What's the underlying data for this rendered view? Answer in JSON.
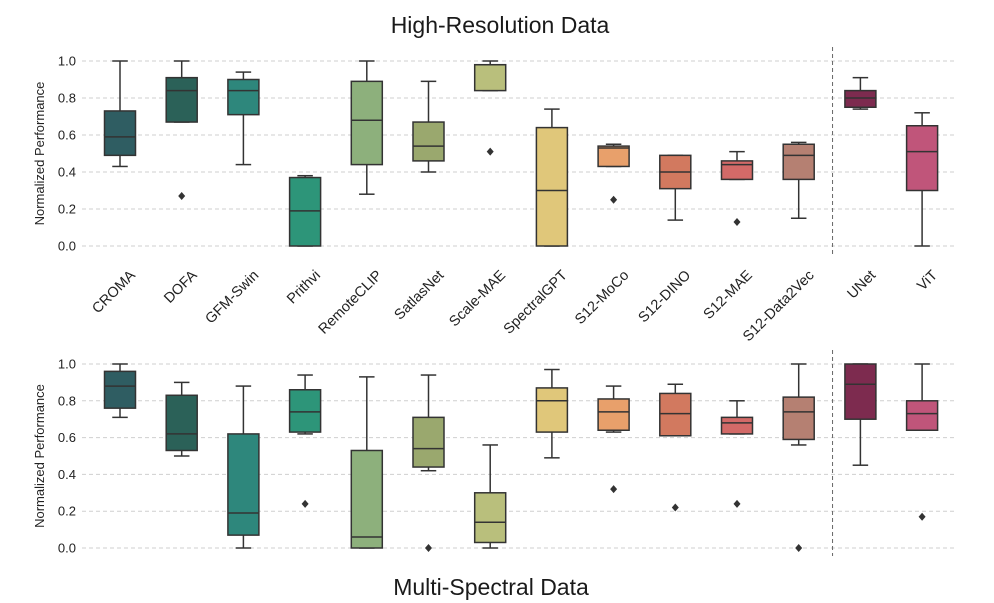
{
  "chart_data": [
    {
      "type": "box",
      "title": "High-Resolution Data",
      "ylabel": "Normalized Performance",
      "ylim": [
        0,
        1
      ],
      "yticks": [
        "0.0",
        "0.2",
        "0.4",
        "0.6",
        "0.8",
        "1.0"
      ],
      "grid": true,
      "categories": [
        "CROMA",
        "DOFA",
        "GFM-Swin",
        "Prithvi",
        "RemoteCLIP",
        "SatlasNet",
        "Scale-MAE",
        "SpectralGPT",
        "S12-MoCo",
        "S12-DINO",
        "S12-MAE",
        "S12-Data2Vec",
        "UNet",
        "ViT"
      ],
      "separator_after": "S12-Data2Vec",
      "boxes": [
        {
          "min": 0.43,
          "q1": 0.49,
          "median": 0.59,
          "q3": 0.73,
          "max": 1.0,
          "outliers": [],
          "color": "#2f5d62"
        },
        {
          "min": 0.67,
          "q1": 0.67,
          "median": 0.84,
          "q3": 0.91,
          "max": 1.0,
          "outliers": [
            0.27
          ],
          "color": "#2b6158"
        },
        {
          "min": 0.44,
          "q1": 0.71,
          "median": 0.84,
          "q3": 0.9,
          "max": 0.94,
          "outliers": [],
          "color": "#2e877c"
        },
        {
          "min": 0.0,
          "q1": 0.0,
          "median": 0.19,
          "q3": 0.37,
          "max": 0.38,
          "outliers": [],
          "color": "#2d9579"
        },
        {
          "min": 0.28,
          "q1": 0.44,
          "median": 0.68,
          "q3": 0.89,
          "max": 1.0,
          "outliers": [],
          "color": "#8db07c"
        },
        {
          "min": 0.4,
          "q1": 0.46,
          "median": 0.54,
          "q3": 0.67,
          "max": 0.89,
          "outliers": [],
          "color": "#9aa86e"
        },
        {
          "min": 0.84,
          "q1": 0.84,
          "median": 0.98,
          "q3": 0.98,
          "max": 1.0,
          "outliers": [
            0.51
          ],
          "color": "#b9bf7c"
        },
        {
          "min": 0.0,
          "q1": 0.0,
          "median": 0.3,
          "q3": 0.64,
          "max": 0.74,
          "outliers": [],
          "color": "#e0c77a"
        },
        {
          "min": 0.43,
          "q1": 0.43,
          "median": 0.53,
          "q3": 0.54,
          "max": 0.55,
          "outliers": [
            0.25
          ],
          "color": "#e8a06b"
        },
        {
          "min": 0.14,
          "q1": 0.31,
          "median": 0.4,
          "q3": 0.49,
          "max": 0.49,
          "outliers": [],
          "color": "#d2795f"
        },
        {
          "min": 0.36,
          "q1": 0.36,
          "median": 0.44,
          "q3": 0.46,
          "max": 0.51,
          "outliers": [
            0.13
          ],
          "color": "#d36a68"
        },
        {
          "min": 0.15,
          "q1": 0.36,
          "median": 0.49,
          "q3": 0.55,
          "max": 0.56,
          "outliers": [],
          "color": "#b58072"
        },
        {
          "min": 0.74,
          "q1": 0.75,
          "median": 0.8,
          "q3": 0.84,
          "max": 0.91,
          "outliers": [],
          "color": "#7d2b4f"
        },
        {
          "min": 0.0,
          "q1": 0.3,
          "median": 0.51,
          "q3": 0.65,
          "max": 0.72,
          "outliers": [],
          "color": "#c0557a"
        }
      ]
    },
    {
      "type": "box",
      "title": "Multi-Spectral Data",
      "ylabel": "Normalized Performance",
      "ylim": [
        0,
        1
      ],
      "yticks": [
        "0.0",
        "0.2",
        "0.4",
        "0.6",
        "0.8",
        "1.0"
      ],
      "grid": true,
      "separator_after": "S12-Data2Vec",
      "boxes": [
        {
          "min": 0.71,
          "q1": 0.76,
          "median": 0.88,
          "q3": 0.96,
          "max": 1.0,
          "outliers": [],
          "color": "#2f5d62"
        },
        {
          "min": 0.5,
          "q1": 0.53,
          "median": 0.62,
          "q3": 0.83,
          "max": 0.9,
          "outliers": [],
          "color": "#2b6158"
        },
        {
          "min": 0.0,
          "q1": 0.07,
          "median": 0.19,
          "q3": 0.62,
          "max": 0.88,
          "outliers": [],
          "color": "#2e877c"
        },
        {
          "min": 0.62,
          "q1": 0.63,
          "median": 0.74,
          "q3": 0.86,
          "max": 0.94,
          "outliers": [
            0.24
          ],
          "color": "#2d9579"
        },
        {
          "min": 0.0,
          "q1": 0.0,
          "median": 0.06,
          "q3": 0.53,
          "max": 0.93,
          "outliers": [],
          "color": "#8db07c"
        },
        {
          "min": 0.42,
          "q1": 0.44,
          "median": 0.54,
          "q3": 0.71,
          "max": 0.94,
          "outliers": [
            0.0
          ],
          "color": "#9aa86e"
        },
        {
          "min": 0.0,
          "q1": 0.03,
          "median": 0.14,
          "q3": 0.3,
          "max": 0.56,
          "outliers": [],
          "color": "#b9bf7c"
        },
        {
          "min": 0.49,
          "q1": 0.63,
          "median": 0.8,
          "q3": 0.87,
          "max": 0.97,
          "outliers": [],
          "color": "#e0c77a"
        },
        {
          "min": 0.63,
          "q1": 0.64,
          "median": 0.74,
          "q3": 0.81,
          "max": 0.88,
          "outliers": [
            0.32
          ],
          "color": "#e8a06b"
        },
        {
          "min": 0.61,
          "q1": 0.61,
          "median": 0.73,
          "q3": 0.84,
          "max": 0.89,
          "outliers": [
            0.22
          ],
          "color": "#d2795f"
        },
        {
          "min": 0.62,
          "q1": 0.62,
          "median": 0.68,
          "q3": 0.71,
          "max": 0.8,
          "outliers": [
            0.24
          ],
          "color": "#d36a68"
        },
        {
          "min": 0.56,
          "q1": 0.59,
          "median": 0.74,
          "q3": 0.82,
          "max": 1.0,
          "outliers": [
            0.0
          ],
          "color": "#b58072"
        },
        {
          "min": 0.45,
          "q1": 0.7,
          "median": 0.89,
          "q3": 1.0,
          "max": 1.0,
          "outliers": [],
          "color": "#7d2b4f"
        },
        {
          "min": 0.64,
          "q1": 0.64,
          "median": 0.73,
          "q3": 0.8,
          "max": 1.0,
          "outliers": [
            0.17
          ],
          "color": "#c0557a"
        }
      ]
    }
  ]
}
